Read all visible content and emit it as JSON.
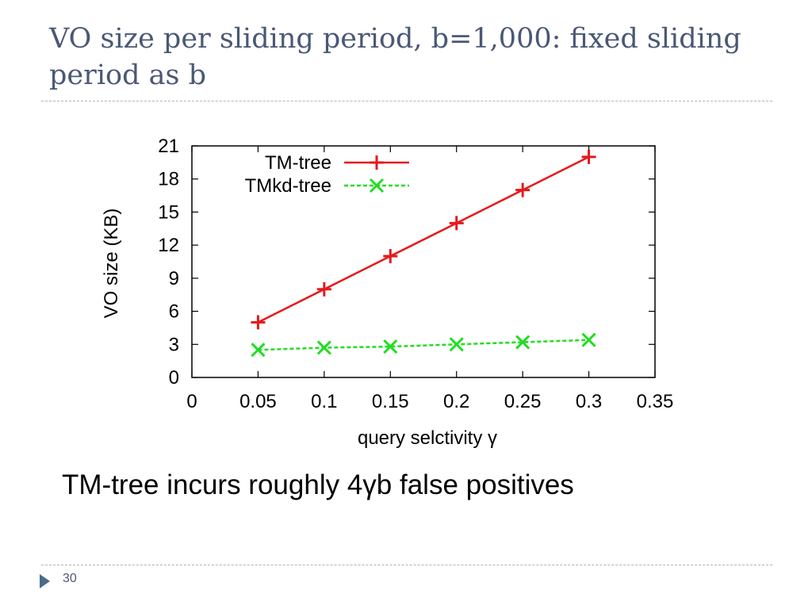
{
  "slide": {
    "title": "VO size per sliding period, b=1,000: fixed sliding period as b",
    "caption": "TM-tree incurs roughly 4γb false positives",
    "page_number": "30"
  },
  "icons": {
    "footer_bullet": "triangle-right-icon"
  },
  "chart_data": {
    "type": "line",
    "title": "",
    "xlabel": "query selctivity γ",
    "ylabel": "VO size (KB)",
    "xlim": [
      0,
      0.35
    ],
    "ylim": [
      0,
      21
    ],
    "x_ticks": [
      "0",
      "0.05",
      "0.1",
      "0.15",
      "0.2",
      "0.25",
      "0.3",
      "0.35"
    ],
    "y_ticks": [
      "0",
      "3",
      "6",
      "9",
      "12",
      "15",
      "18",
      "21"
    ],
    "grid": false,
    "legend_position": "top-left",
    "series": [
      {
        "name": "TM-tree",
        "color": "#e41a1c",
        "marker": "plus",
        "line_style": "solid",
        "x": [
          0.05,
          0.1,
          0.15,
          0.2,
          0.25,
          0.3
        ],
        "y": [
          5,
          8,
          11,
          14,
          17,
          20
        ]
      },
      {
        "name": "TMkd-tree",
        "color": "#22dd22",
        "marker": "cross",
        "line_style": "dashed",
        "x": [
          0.05,
          0.1,
          0.15,
          0.2,
          0.25,
          0.3
        ],
        "y": [
          2.5,
          2.7,
          2.8,
          3.0,
          3.2,
          3.4
        ]
      }
    ]
  }
}
